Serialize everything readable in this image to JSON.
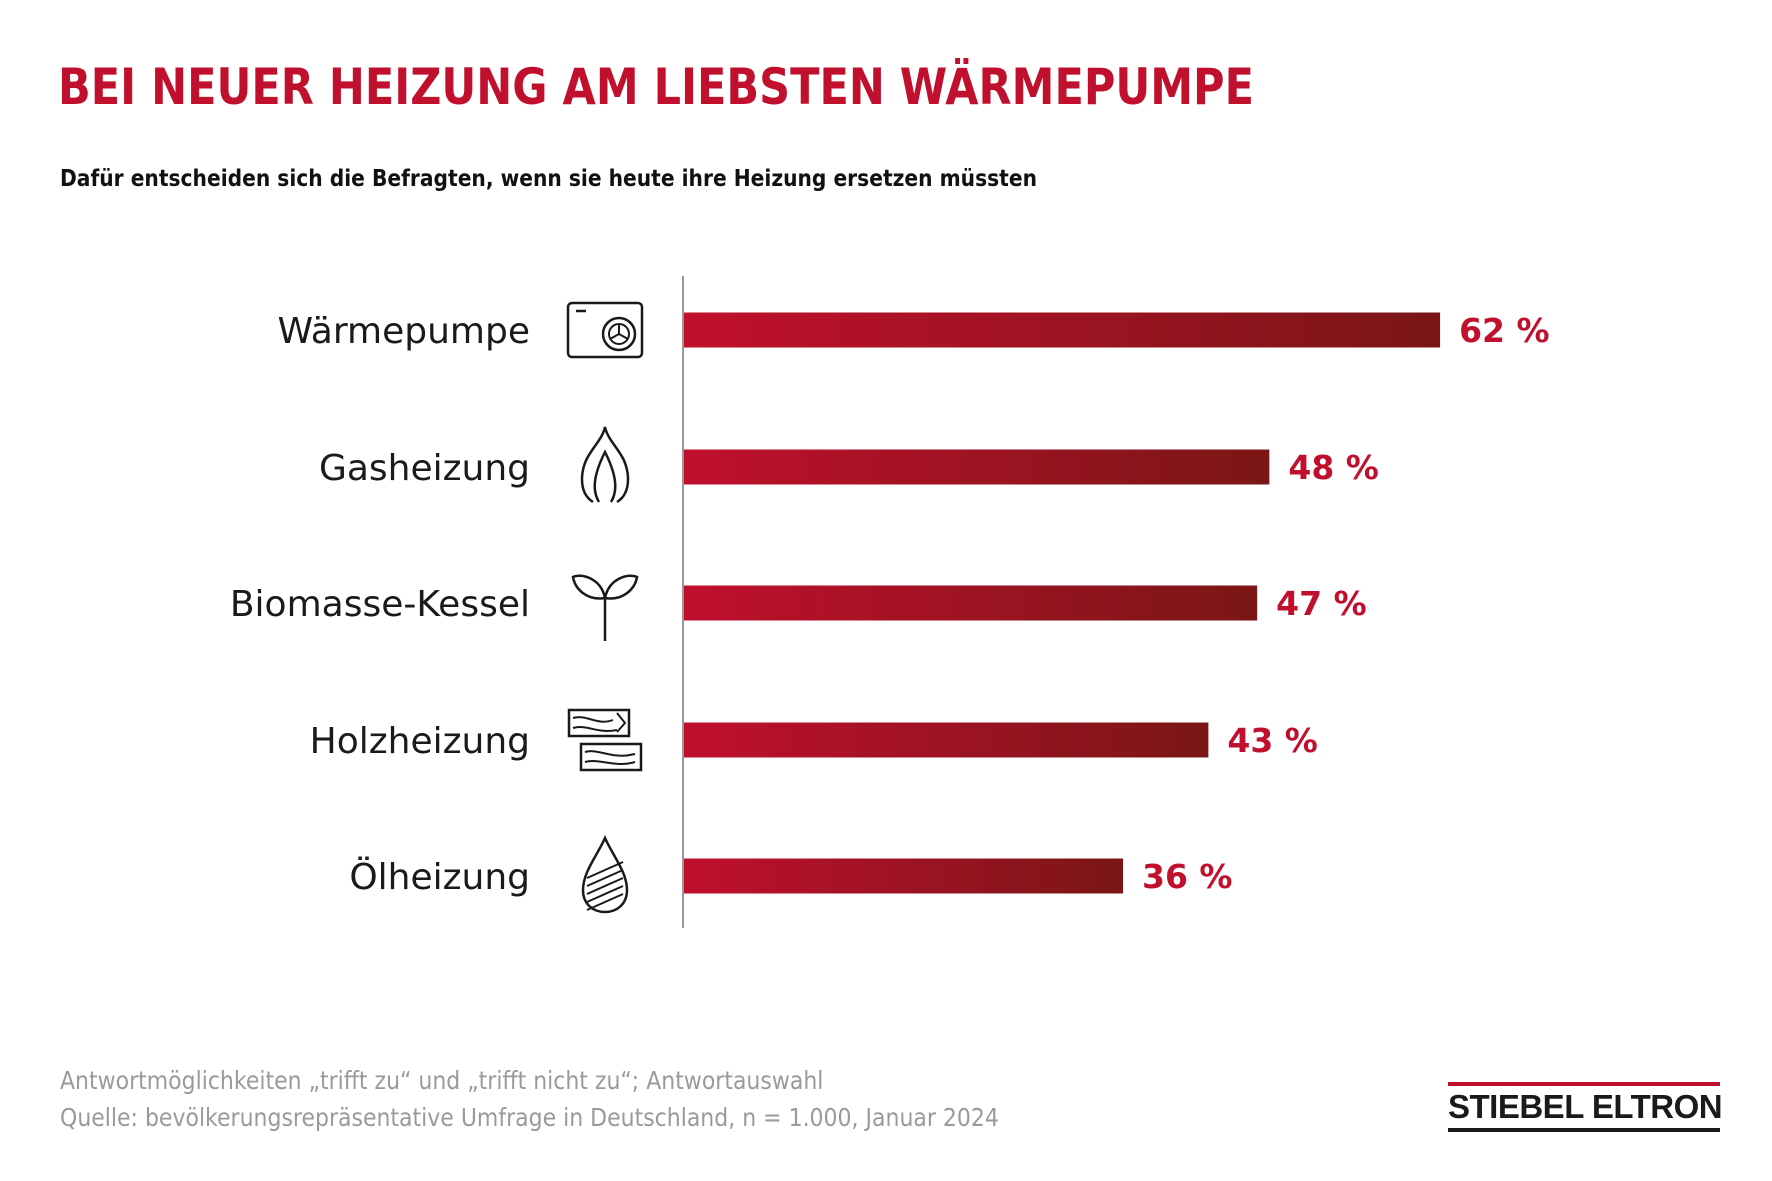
{
  "title": "BEI NEUER HEIZUNG AM LIEBSTEN WÄRMEPUMPE",
  "subtitle": "Dafür entscheiden sich die Befragten, wenn sie heute ihre Heizung ersetzen müssten",
  "chart_data": {
    "type": "bar",
    "orientation": "horizontal",
    "title": "",
    "xlabel": "",
    "ylabel": "",
    "categories": [
      "Wärmepumpe",
      "Gasheizung",
      "Biomasse-Kessel",
      "Holzheizung",
      "Ölheizung"
    ],
    "values": [
      62,
      48,
      47,
      43,
      36
    ],
    "value_labels": [
      "62 %",
      "48 %",
      "47 %",
      "43 %",
      "36 %"
    ],
    "icons": [
      "heat-pump-icon",
      "flame-icon",
      "sprout-icon",
      "wood-logs-icon",
      "oil-drop-icon"
    ],
    "xlim": [
      0,
      100
    ],
    "grid": false,
    "colors": {
      "bar_start": "#c0102d",
      "bar_end": "#7a1616",
      "label": "#c0102d",
      "axis": "#999999",
      "category": "#1a1a1a",
      "icon": "#1a1a1a"
    }
  },
  "footnotes": [
    "Antwortmöglichkeiten „trifft zu“ und „trifft nicht zu“; Antwortauswahl",
    "Quelle: bevölkerungsrepräsentative Umfrage in Deutschland, n = 1.000, Januar 2024"
  ],
  "logo": {
    "text": "STIEBEL ELTRON",
    "color_top": "#c0102d",
    "color_bottom": "#1a1a1a"
  }
}
